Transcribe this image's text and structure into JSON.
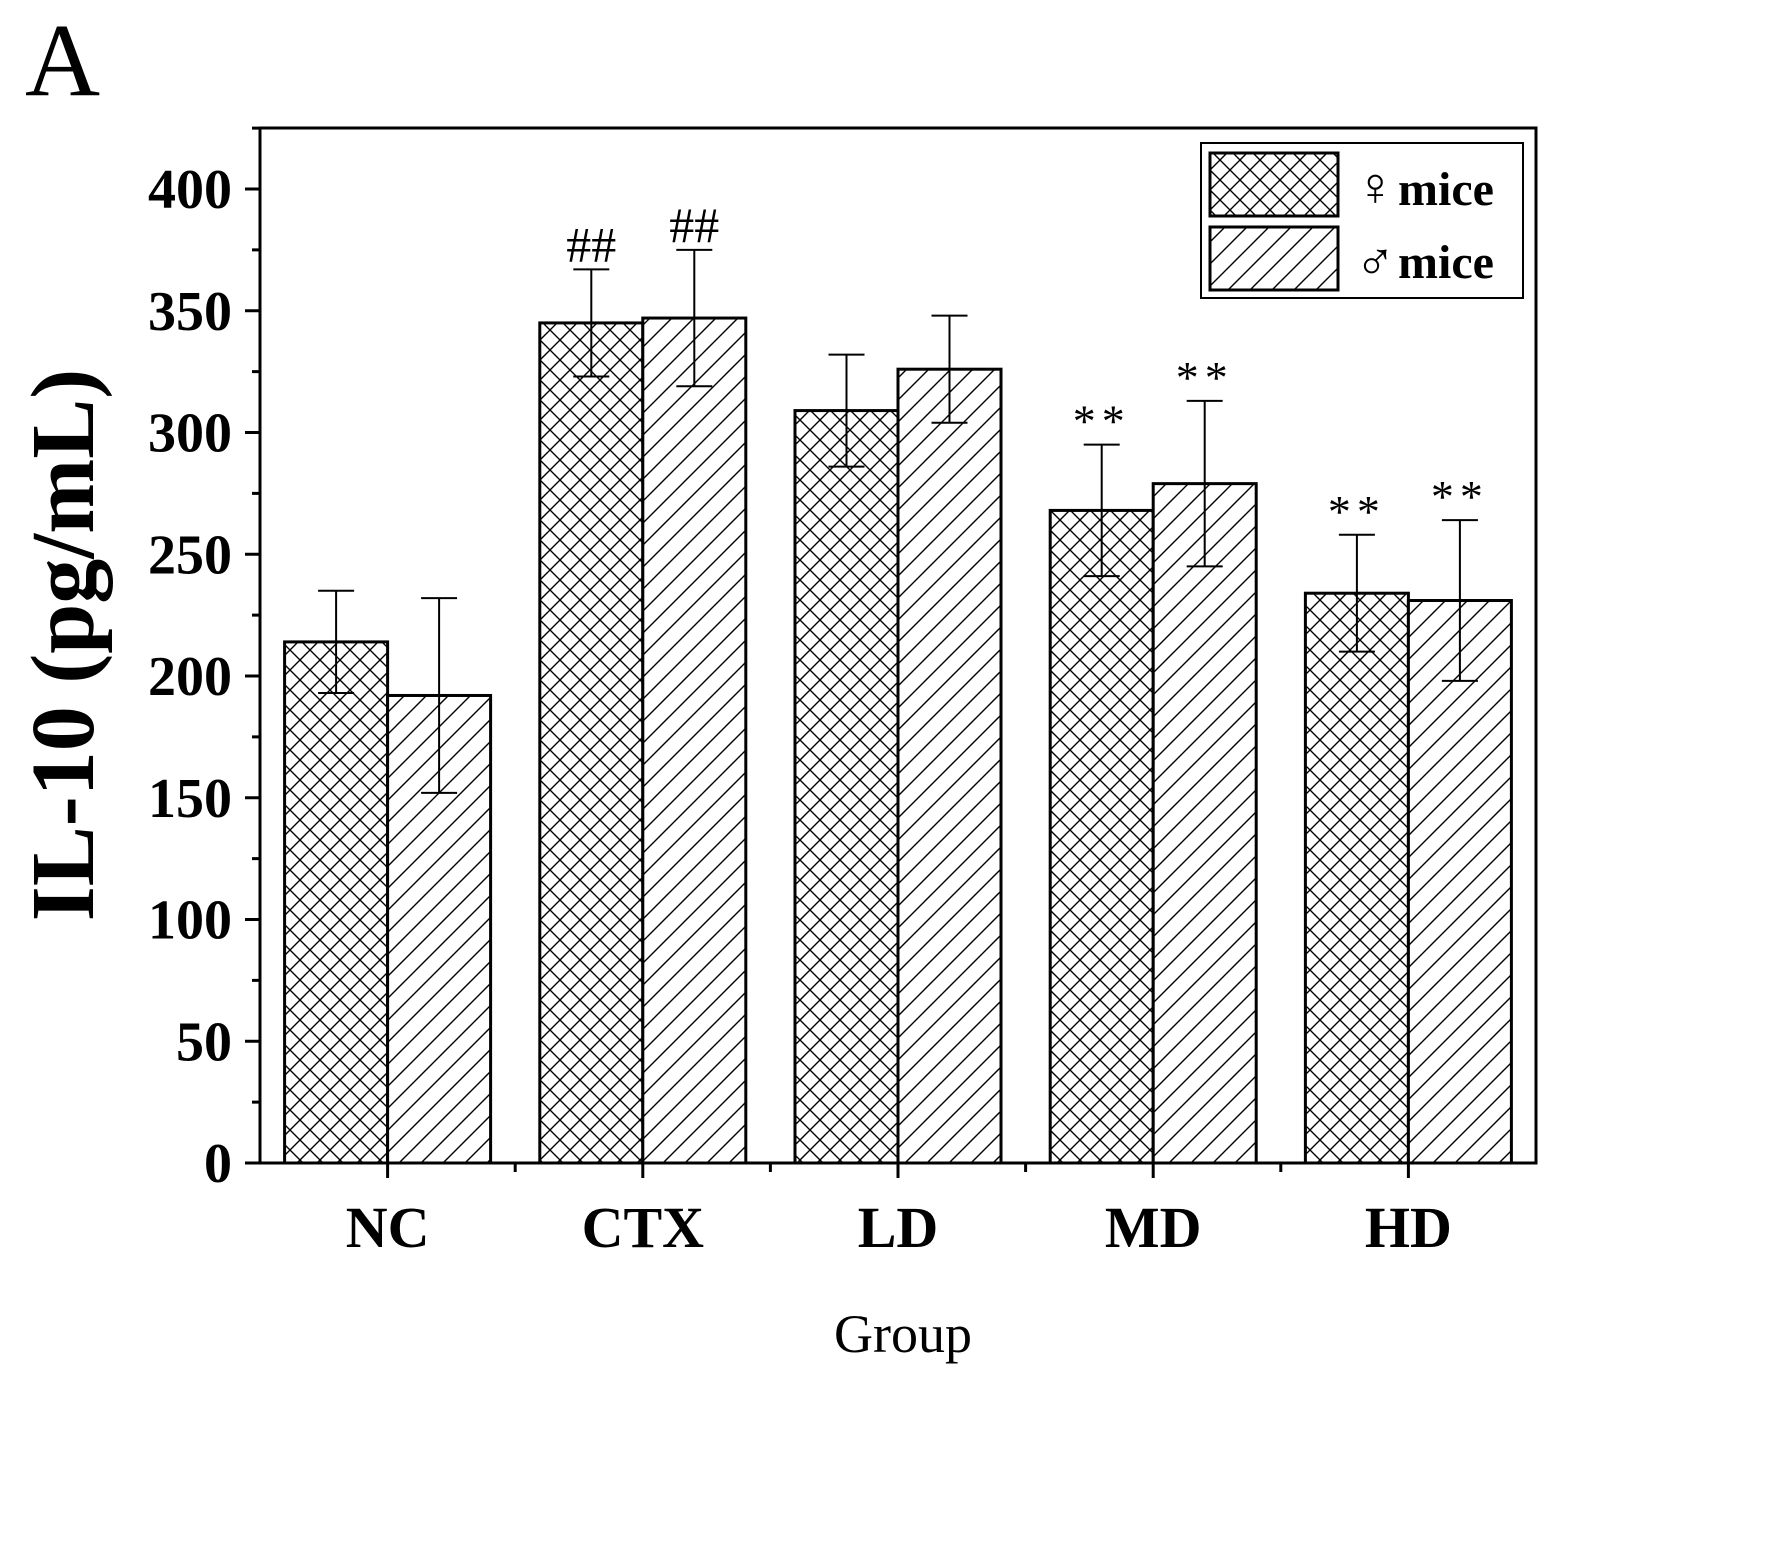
{
  "panel_label": "A",
  "chart_data": {
    "type": "bar",
    "title": "",
    "xlabel": "Group",
    "ylabel": "IL-10 (pg/mL)",
    "ylim": [
      0,
      430
    ],
    "yticks": [
      0,
      50,
      100,
      150,
      200,
      250,
      300,
      350,
      400
    ],
    "ytick_labels": [
      "0",
      "50",
      "100",
      "150",
      "200",
      "250",
      "300",
      "350",
      "400"
    ],
    "categories": [
      "NC",
      "CTX",
      "LD",
      "MD",
      "HD"
    ],
    "grid": false,
    "legend_position": "top-right",
    "series": [
      {
        "name": "♀mice",
        "symbol": "♀",
        "label": "mice",
        "pattern": "crosshatch",
        "values": [
          214,
          345,
          309,
          268,
          234
        ],
        "errors": [
          21,
          22,
          23,
          27,
          24
        ],
        "annotations": [
          "",
          "##",
          "",
          "**",
          "**"
        ]
      },
      {
        "name": "♂mice",
        "symbol": "♂",
        "label": "mice",
        "pattern": "diagonal",
        "values": [
          192,
          347,
          326,
          279,
          231
        ],
        "errors": [
          40,
          28,
          22,
          34,
          33
        ],
        "annotations": [
          "",
          "##",
          "",
          "**",
          "**"
        ]
      }
    ]
  },
  "colors": {
    "bar_fill": "#ffffff",
    "stroke": "#000000",
    "background": "#ffffff"
  }
}
